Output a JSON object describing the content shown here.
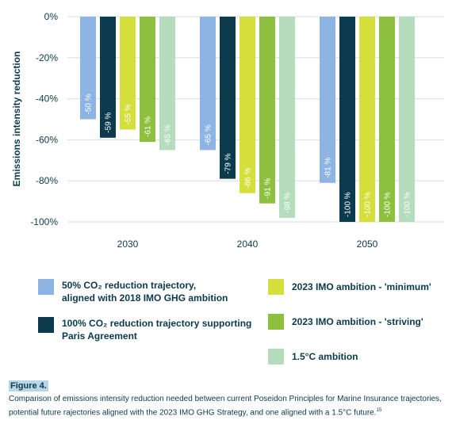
{
  "chart_data": {
    "type": "bar",
    "categories": [
      "2030",
      "2040",
      "2050"
    ],
    "ylabel": "Emissions intensity reduction",
    "ylim": [
      -100,
      0
    ],
    "yticks": [
      "0%",
      "-20%",
      "-40%",
      "-60%",
      "-80%",
      "-100%"
    ],
    "grid": true,
    "series": [
      {
        "name": "50% CO2 reduction trajectory, aligned with 2018 IMO GHG ambition",
        "color": "#8db4e2",
        "values": [
          -50,
          -65,
          -81
        ],
        "labels": [
          "-50 %",
          "-65 %",
          "-81 %"
        ]
      },
      {
        "name": "100% CO2 reduction trajectory supporting Paris Agreement",
        "color": "#0c3b4d",
        "values": [
          -59,
          -79,
          -100
        ],
        "labels": [
          "-59 %",
          "-79 %",
          "-100 %"
        ]
      },
      {
        "name": "2023 IMO ambition - 'minimum'",
        "color": "#d4df3c",
        "values": [
          -55,
          -86,
          -100
        ],
        "labels": [
          "-55 %",
          "-86 %",
          "-100 %"
        ]
      },
      {
        "name": "2023 IMO ambition - 'striving'",
        "color": "#8dc03f",
        "values": [
          -61,
          -91,
          -100
        ],
        "labels": [
          "-61 %",
          "-91 %",
          "-100 %"
        ]
      },
      {
        "name": "1.5°C ambition",
        "color": "#b4dcbd",
        "values": [
          -65,
          -98,
          -100
        ],
        "labels": [
          "-65 %",
          "-98 %",
          "-100 %"
        ]
      }
    ]
  },
  "legend": {
    "s1_line1": "50% CO₂ reduction trajectory,",
    "s1_line2": "aligned with 2018 IMO GHG ambition",
    "s2_line1": "100% CO₂ reduction trajectory supporting",
    "s2_line2": "Paris Agreement",
    "s3": "2023 IMO ambition - 'minimum'",
    "s4": "2023 IMO ambition - 'striving'",
    "s5": "1.5°C ambition"
  },
  "figure": {
    "title": "Figure 4.",
    "caption": "Comparison of emissions intensity reduction needed between current Poseidon Principles for Marine Insurance trajectories, potential future rajectories aligned with the 2023 IMO GHG Strategy, and one aligned with a 1.5°C future.",
    "footnote": "15"
  }
}
